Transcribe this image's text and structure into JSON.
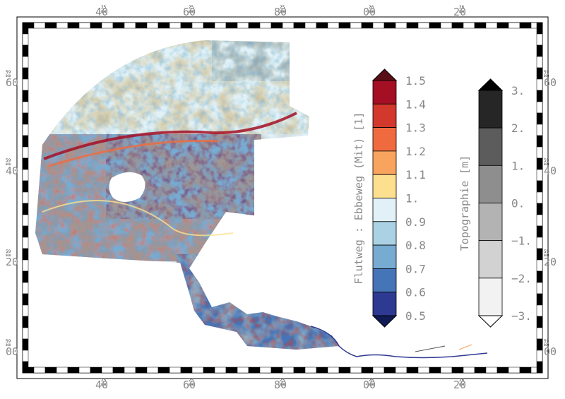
{
  "map": {
    "lon_ticks": [
      {
        "deg": "25",
        "min": "40",
        "sec": "000"
      },
      {
        "deg": "25",
        "min": "60",
        "sec": "000"
      },
      {
        "deg": "25",
        "min": "80",
        "sec": "000"
      },
      {
        "deg": "26",
        "min": "00",
        "sec": "000"
      },
      {
        "deg": "26",
        "min": "20",
        "sec": "000"
      }
    ],
    "lat_ticks": [
      {
        "deg": "59",
        "min": "60",
        "sec": "000"
      },
      {
        "deg": "59",
        "min": "40",
        "sec": "000"
      },
      {
        "deg": "59",
        "min": "20",
        "sec": "000"
      },
      {
        "deg": "59",
        "min": "00",
        "sec": "000"
      }
    ]
  },
  "ratio_legend": {
    "title": "Flutweg : Ebbeweg (Mit) [1]",
    "labels": [
      "1.5",
      "1.4",
      "1.3",
      "1.2",
      "1.1",
      "1.",
      "0.9",
      "0.8",
      "0.7",
      "0.6",
      "0.5"
    ],
    "colors": [
      "#a50f24",
      "#d2382c",
      "#ef6b3f",
      "#f9a45e",
      "#fde08f",
      "#e1f1f7",
      "#abd2e4",
      "#77abd2",
      "#4575b7",
      "#2e3a92"
    ],
    "over_color": "#5a0e16",
    "under_color": "#101a55"
  },
  "topo_legend": {
    "title": "Topographie [m]",
    "labels": [
      "3.",
      "2.",
      "1.",
      "0.",
      "−1.",
      "−2.",
      "−3."
    ],
    "colors": [
      "#262626",
      "#5c5c5c",
      "#8e8e8e",
      "#b3b3b3",
      "#d2d2d2",
      "#f2f2f2"
    ],
    "over_color": "#000000",
    "under_color": "#ffffff"
  }
}
